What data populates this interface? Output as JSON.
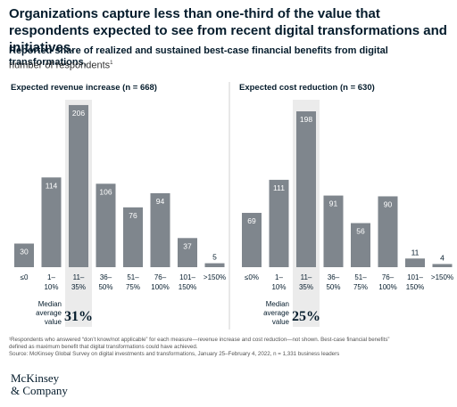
{
  "title": "Organizations capture less than one-third of the value that respondents expected to see from recent digital transformations and initiatives.",
  "subtitle": "Reported share of realized and sustained best-case financial benefits from digital transformations,",
  "units": "number of respondents",
  "units_marker": "1",
  "median_label": [
    "Median",
    "average",
    "value"
  ],
  "chart_data": [
    {
      "type": "bar",
      "title": "Expected revenue increase (n = 668)",
      "categories": [
        [
          "≤0"
        ],
        [
          "1–",
          "10%"
        ],
        [
          "11–",
          "35%"
        ],
        [
          "36–",
          "50%"
        ],
        [
          "51–",
          "75%"
        ],
        [
          "76–",
          "100%"
        ],
        [
          "101–",
          "150%"
        ],
        [
          ">150%"
        ]
      ],
      "values": [
        30,
        114,
        206,
        106,
        76,
        94,
        37,
        5
      ],
      "highlight_index": 2,
      "median": "31%",
      "ylim": [
        0,
        215
      ],
      "grid": false
    },
    {
      "type": "bar",
      "title": "Expected cost reduction (n = 630)",
      "categories": [
        [
          "≤0%"
        ],
        [
          "1–",
          "10%"
        ],
        [
          "11–",
          "35%"
        ],
        [
          "36–",
          "50%"
        ],
        [
          "51–",
          "75%"
        ],
        [
          "76–",
          "100%"
        ],
        [
          "101–",
          "150%"
        ],
        [
          ">150%"
        ]
      ],
      "values": [
        69,
        111,
        198,
        91,
        56,
        90,
        11,
        4
      ],
      "highlight_index": 2,
      "median": "25%",
      "ylim": [
        0,
        215
      ],
      "grid": false
    }
  ],
  "footnote": {
    "line1": "¹Respondents who answered “don’t know/not applicable” for each measure—revenue increase and cost reduction—not shown. Best-case financial benefits”",
    "line2": "defined as maximum benefit that digital transformations could have achieved.",
    "line3": "Source: McKinsey Global Survey on digital investments and transformations, January 25–February 4, 2022, n = 1,331 business leaders"
  },
  "logo": {
    "line1": "McKinsey",
    "line2": "& Company"
  },
  "colors": {
    "bar": "#7f868d",
    "highlight": "#ebebeb",
    "text": "#051c2c",
    "divider": "#d0d0d0"
  }
}
